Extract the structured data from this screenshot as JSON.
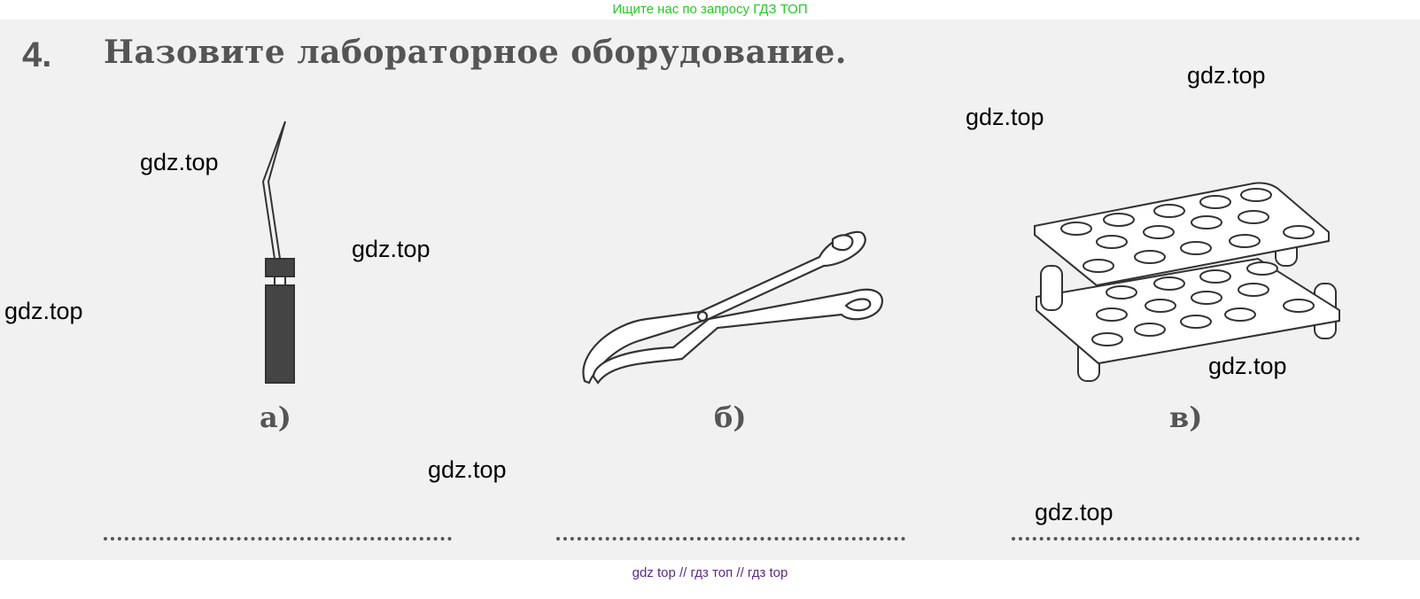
{
  "banner": "Ищите нас по запросу ГДЗ ТОП",
  "task": {
    "number": "4.",
    "title": "Назовите лабораторное оборудование."
  },
  "items": [
    {
      "label": "а)",
      "illustration": "spatula"
    },
    {
      "label": "б)",
      "illustration": "crucible-tongs"
    },
    {
      "label": "в)",
      "illustration": "test-tube-rack"
    }
  ],
  "watermarks": [
    "gdz.top",
    "gdz.top",
    "gdz.top",
    "gdz.top",
    "gdz.top",
    "gdz.top",
    "gdz.top",
    "gdz.top"
  ],
  "footer": "gdz top  //  гдз топ  //  гдз top",
  "colors": {
    "banner": "#22cc22",
    "footer": "#5b2a86",
    "page": "#f1f1f1",
    "ink": "#555555"
  }
}
